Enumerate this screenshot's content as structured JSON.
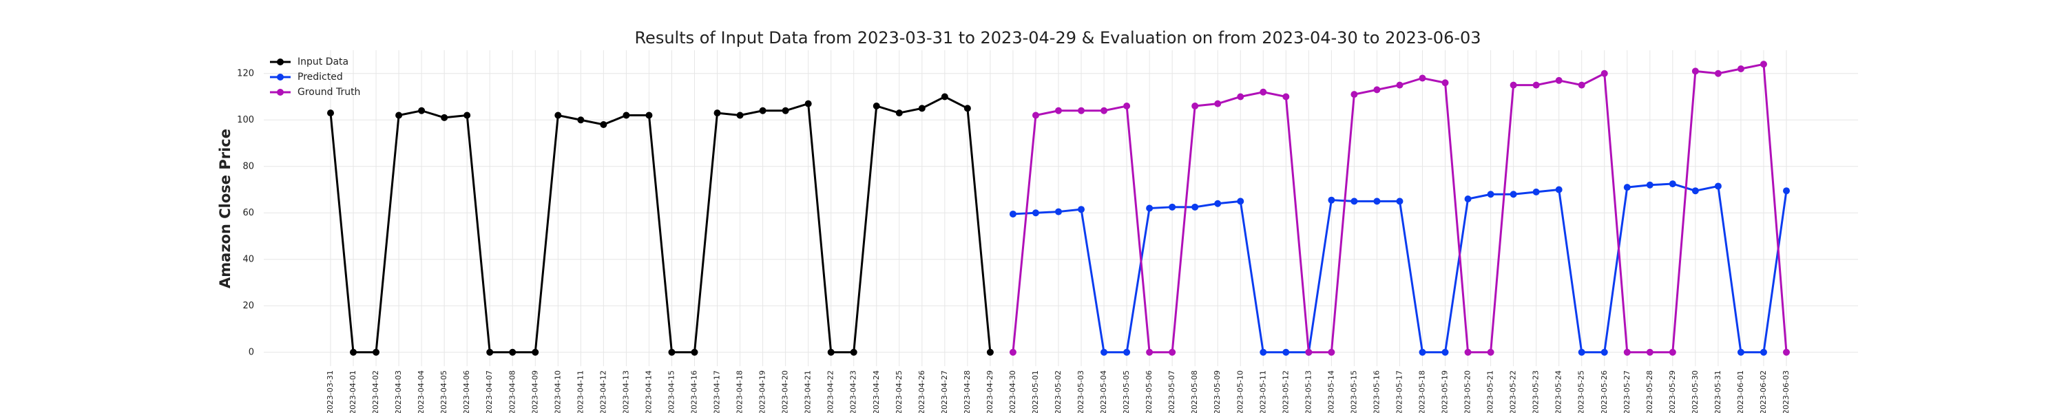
{
  "chart_data": {
    "type": "line",
    "title": "Results of Input Data from 2023-03-31 to 2023-04-29 & Evaluation on from 2023-04-30 to 2023-06-03",
    "ylabel": "Amazon Close Price",
    "categories": [
      "2023-03-31",
      "2023-04-01",
      "2023-04-02",
      "2023-04-03",
      "2023-04-04",
      "2023-04-05",
      "2023-04-06",
      "2023-04-07",
      "2023-04-08",
      "2023-04-09",
      "2023-04-10",
      "2023-04-11",
      "2023-04-12",
      "2023-04-13",
      "2023-04-14",
      "2023-04-15",
      "2023-04-16",
      "2023-04-17",
      "2023-04-18",
      "2023-04-19",
      "2023-04-20",
      "2023-04-21",
      "2023-04-22",
      "2023-04-23",
      "2023-04-24",
      "2023-04-25",
      "2023-04-26",
      "2023-04-27",
      "2023-04-28",
      "2023-04-29",
      "2023-04-30",
      "2023-05-01",
      "2023-05-02",
      "2023-05-03",
      "2023-05-04",
      "2023-05-05",
      "2023-05-06",
      "2023-05-07",
      "2023-05-08",
      "2023-05-09",
      "2023-05-10",
      "2023-05-11",
      "2023-05-12",
      "2023-05-13",
      "2023-05-14",
      "2023-05-15",
      "2023-05-16",
      "2023-05-17",
      "2023-05-18",
      "2023-05-19",
      "2023-05-20",
      "2023-05-21",
      "2023-05-22",
      "2023-05-23",
      "2023-05-24",
      "2023-05-25",
      "2023-05-26",
      "2023-05-27",
      "2023-05-28",
      "2023-05-29",
      "2023-05-30",
      "2023-05-31",
      "2023-06-01",
      "2023-06-02",
      "2023-06-03"
    ],
    "series": [
      {
        "name": "Input Data",
        "color": "#000000",
        "values": [
          103,
          0,
          0,
          102,
          104,
          101,
          102,
          0,
          0,
          0,
          102,
          100,
          98,
          102,
          102,
          0,
          0,
          103,
          102,
          104,
          104,
          107,
          0,
          0,
          106,
          103,
          105,
          110,
          105,
          0,
          null,
          null,
          null,
          null,
          null,
          null,
          null,
          null,
          null,
          null,
          null,
          null,
          null,
          null,
          null,
          null,
          null,
          null,
          null,
          null,
          null,
          null,
          null,
          null,
          null,
          null,
          null,
          null,
          null,
          null,
          null,
          null,
          null,
          null,
          null
        ]
      },
      {
        "name": "Predicted",
        "color": "#0a3cf0",
        "values": [
          null,
          null,
          null,
          null,
          null,
          null,
          null,
          null,
          null,
          null,
          null,
          null,
          null,
          null,
          null,
          null,
          null,
          null,
          null,
          null,
          null,
          null,
          null,
          null,
          null,
          null,
          null,
          null,
          null,
          null,
          59.5,
          60,
          60.5,
          61.5,
          0,
          0,
          62,
          62.5,
          62.5,
          64,
          65,
          0,
          0,
          0,
          65.5,
          65,
          65,
          65,
          0,
          0,
          66,
          68,
          68,
          69,
          70,
          0,
          0,
          71,
          72,
          72.5,
          69.5,
          71.5,
          0,
          0,
          69.5
        ]
      },
      {
        "name": "Ground Truth",
        "color": "#b010b8",
        "values": [
          null,
          null,
          null,
          null,
          null,
          null,
          null,
          null,
          null,
          null,
          null,
          null,
          null,
          null,
          null,
          null,
          null,
          null,
          null,
          null,
          null,
          null,
          null,
          null,
          null,
          null,
          null,
          null,
          null,
          null,
          0,
          102,
          104,
          104,
          104,
          106,
          0,
          0,
          106,
          107,
          110,
          112,
          110,
          0,
          0,
          111,
          113,
          115,
          118,
          116,
          0,
          0,
          115,
          115,
          117,
          115,
          120,
          0,
          0,
          0,
          121,
          120,
          122,
          124,
          0
        ]
      }
    ],
    "ylim": [
      -6,
      130
    ],
    "yticks": [
      0,
      20,
      40,
      60,
      80,
      100,
      120
    ],
    "grid": true,
    "legend": "upper left"
  }
}
